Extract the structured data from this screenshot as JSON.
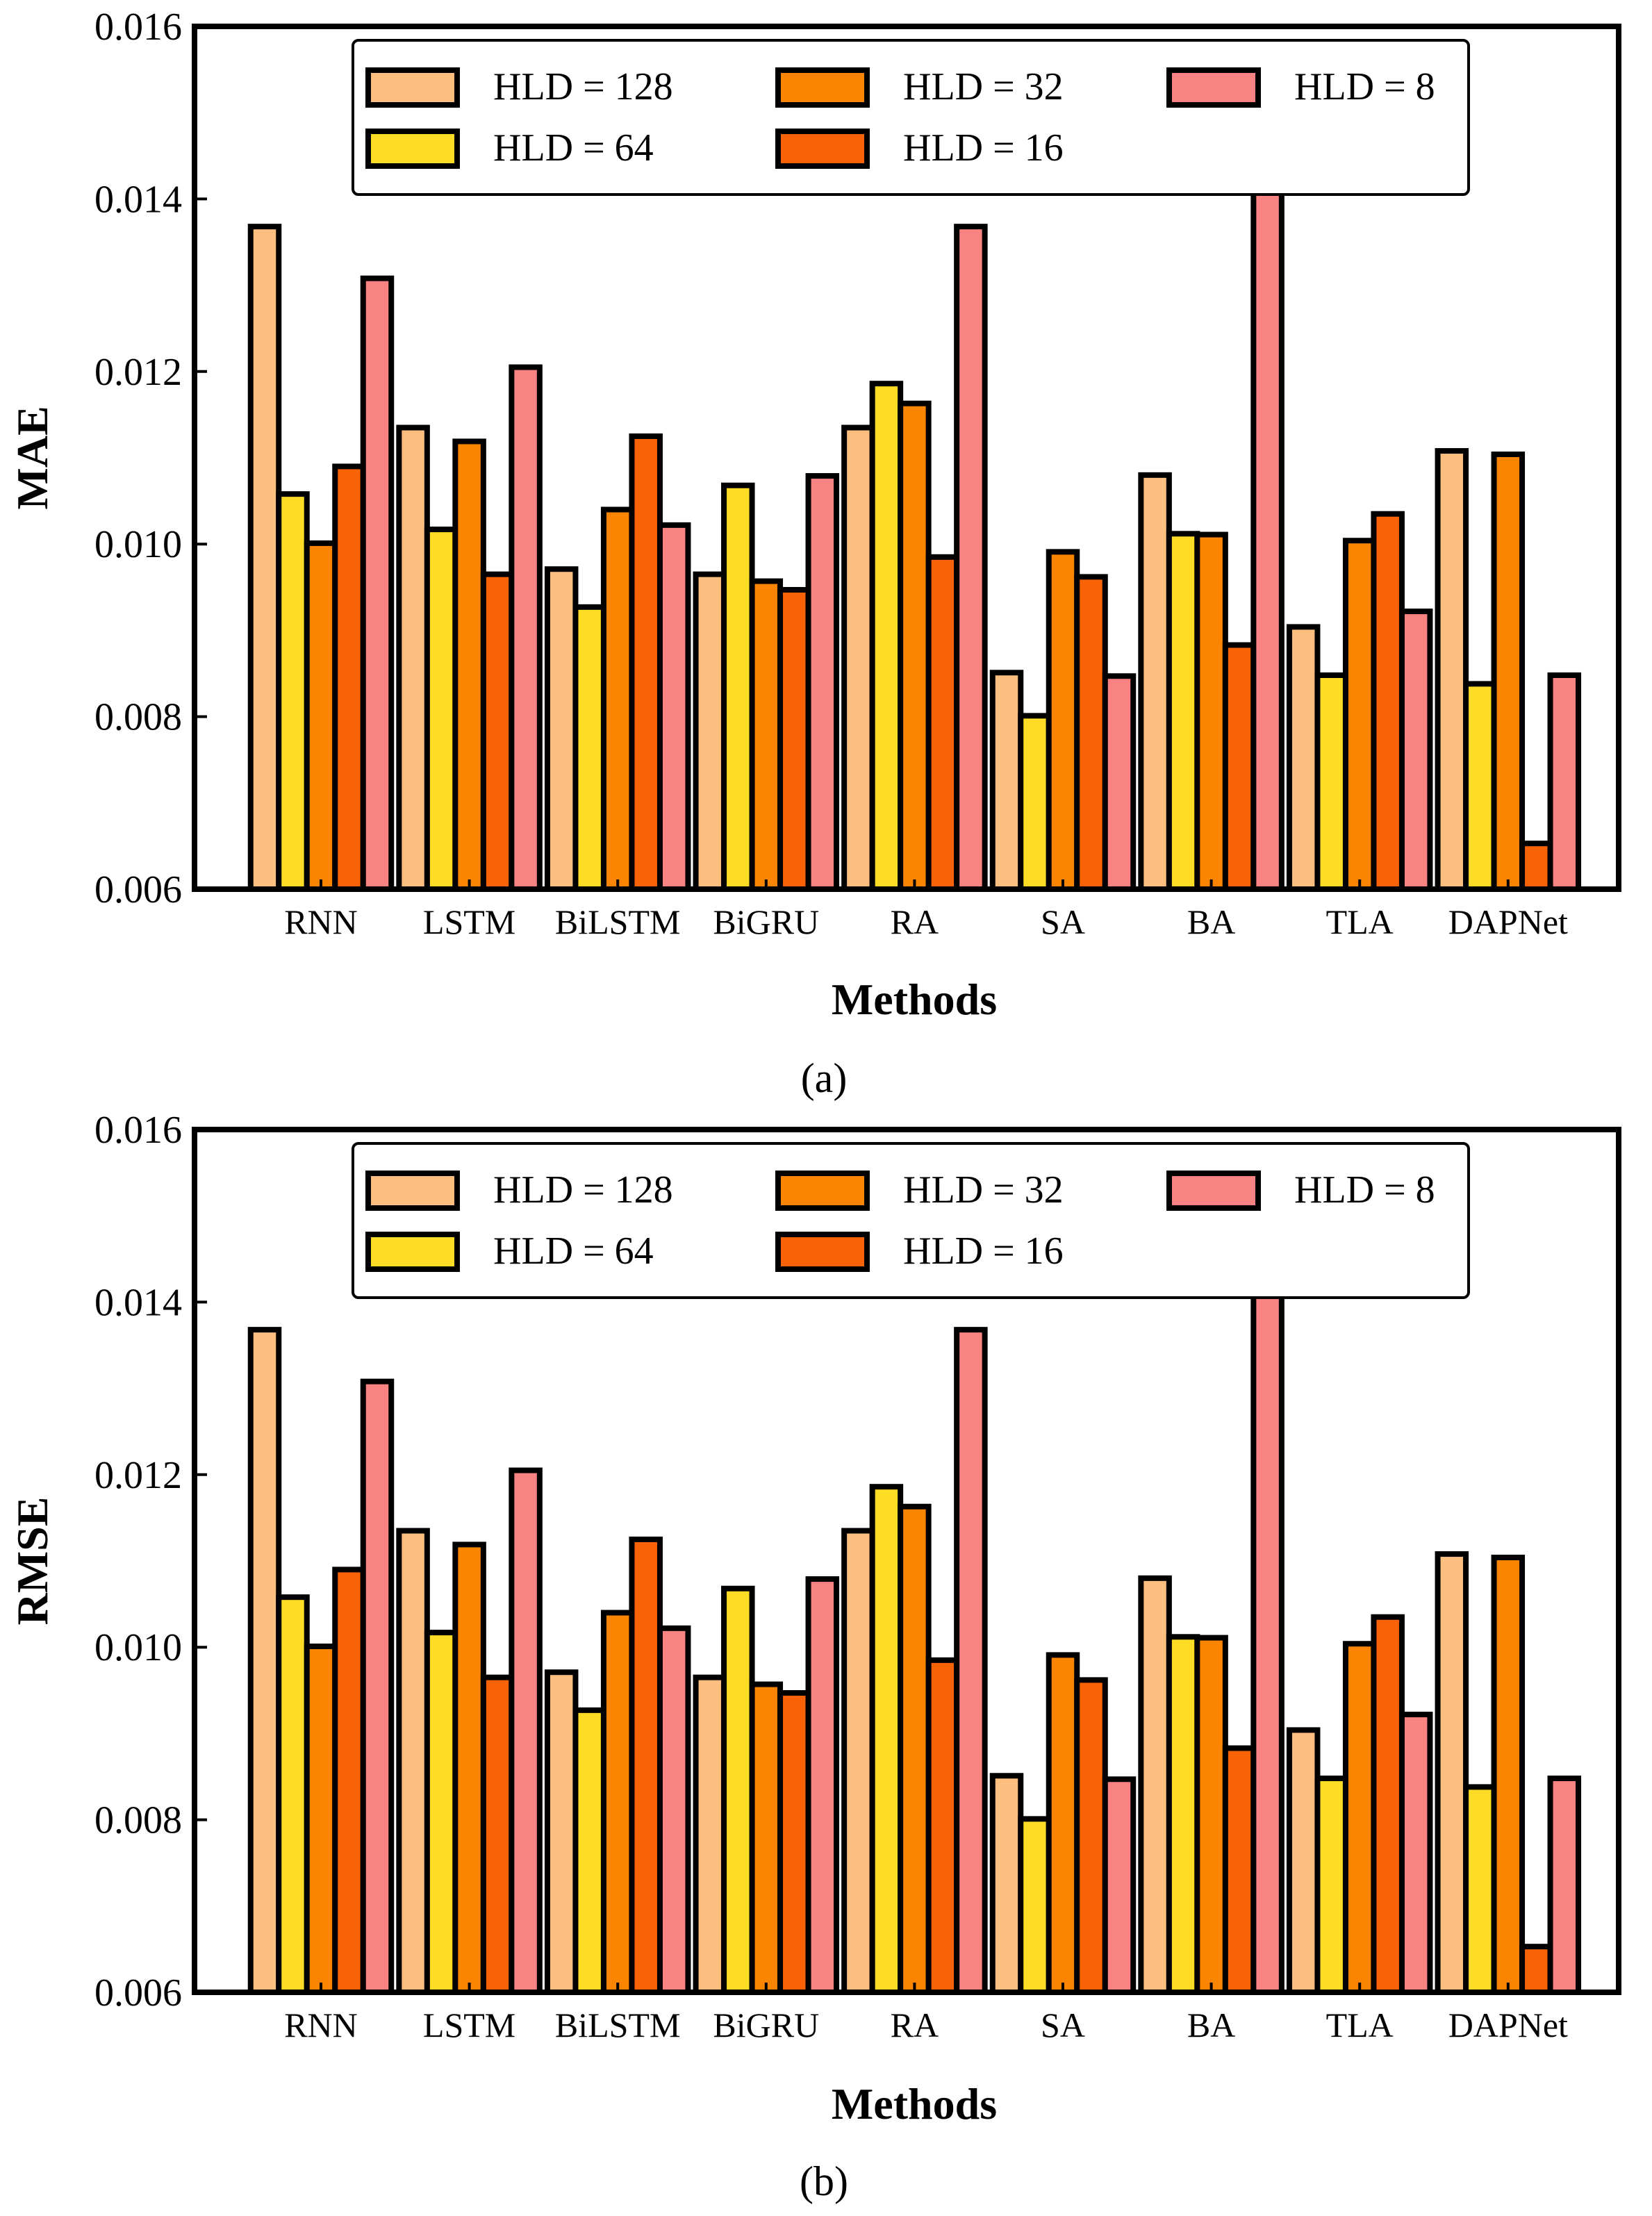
{
  "chart_data": [
    {
      "type": "bar",
      "caption": "(a)",
      "xlabel": "Methods",
      "ylabel": "MAE",
      "ylim": [
        0.006,
        0.016
      ],
      "yticks": [
        "0.006",
        "0.008",
        "0.010",
        "0.012",
        "0.014",
        "0.016"
      ],
      "yticks_values": [
        0.006,
        0.008,
        0.01,
        0.012,
        0.014,
        0.016
      ],
      "legend_position": "top-center",
      "categories": [
        "RNN",
        "LSTM",
        "BiLSTM",
        "BiGRU",
        "RA",
        "SA",
        "BA",
        "TLA",
        "DAPNet"
      ],
      "series": [
        {
          "name": "HLD = 128",
          "color": "#FDBF7F",
          "values": [
            0.01368,
            0.01135,
            0.00971,
            0.00965,
            0.01135,
            0.00851,
            0.0108,
            0.00904,
            0.01108
          ]
        },
        {
          "name": "HLD = 64",
          "color": "#FDDC26",
          "values": [
            0.01058,
            0.01017,
            0.00927,
            0.01068,
            0.01186,
            0.00801,
            0.01012,
            0.00848,
            0.00838
          ]
        },
        {
          "name": "HLD = 32",
          "color": "#FB8500",
          "values": [
            0.01001,
            0.01119,
            0.0104,
            0.00957,
            0.01163,
            0.00991,
            0.01011,
            0.01004,
            0.01104
          ]
        },
        {
          "name": "HLD = 16",
          "color": "#F96306",
          "values": [
            0.0109,
            0.00965,
            0.01125,
            0.00947,
            0.00985,
            0.00962,
            0.00883,
            0.01035,
            0.00653
          ]
        },
        {
          "name": "HLD = 8",
          "color": "#F98282",
          "values": [
            0.01308,
            0.01205,
            0.01022,
            0.01079,
            0.01368,
            0.00847,
            0.01414,
            0.00922,
            0.00848
          ]
        }
      ]
    },
    {
      "type": "bar",
      "caption": "(b)",
      "xlabel": "Methods",
      "ylabel": "RMSE",
      "ylim": [
        0.006,
        0.016
      ],
      "yticks": [
        "0.006",
        "0.008",
        "0.010",
        "0.012",
        "0.014",
        "0.016"
      ],
      "yticks_values": [
        0.006,
        0.008,
        0.01,
        0.012,
        0.014,
        0.016
      ],
      "legend_position": "top-center",
      "categories": [
        "RNN",
        "LSTM",
        "BiLSTM",
        "BiGRU",
        "RA",
        "SA",
        "BA",
        "TLA",
        "DAPNet"
      ],
      "series": [
        {
          "name": "HLD = 128",
          "color": "#FDBF7F",
          "values": [
            0.01368,
            0.01135,
            0.00971,
            0.00965,
            0.01135,
            0.00851,
            0.0108,
            0.00904,
            0.01108
          ]
        },
        {
          "name": "HLD = 64",
          "color": "#FDDC26",
          "values": [
            0.01058,
            0.01017,
            0.00927,
            0.01068,
            0.01186,
            0.00801,
            0.01012,
            0.00848,
            0.00838
          ]
        },
        {
          "name": "HLD = 32",
          "color": "#FB8500",
          "values": [
            0.01001,
            0.01119,
            0.0104,
            0.00957,
            0.01163,
            0.00991,
            0.01011,
            0.01004,
            0.01104
          ]
        },
        {
          "name": "HLD = 16",
          "color": "#F96306",
          "values": [
            0.0109,
            0.00965,
            0.01125,
            0.00947,
            0.00985,
            0.00962,
            0.00883,
            0.01035,
            0.00653
          ]
        },
        {
          "name": "HLD = 8",
          "color": "#F98282",
          "values": [
            0.01308,
            0.01205,
            0.01022,
            0.01079,
            0.01368,
            0.00847,
            0.01414,
            0.00922,
            0.00848
          ]
        }
      ]
    }
  ]
}
